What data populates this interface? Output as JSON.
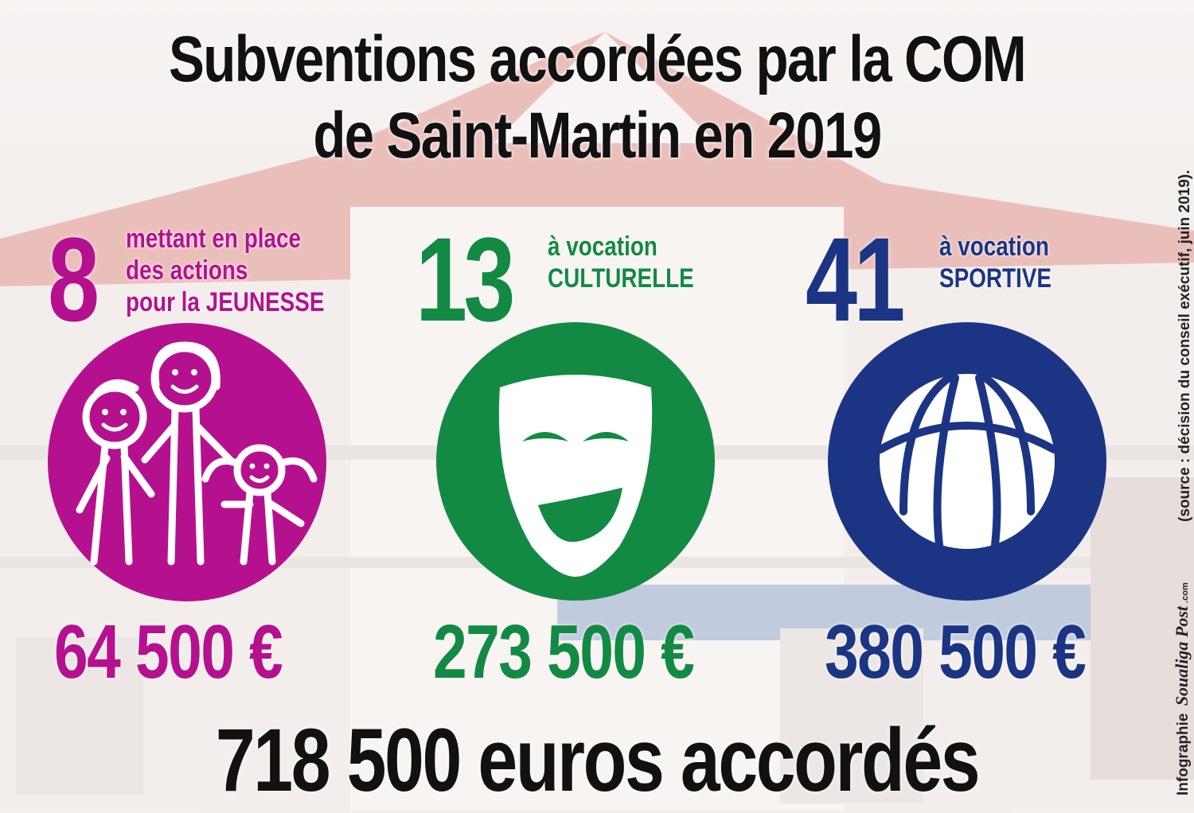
{
  "title": {
    "line1": "Subventions accordées par la COM",
    "line2": "de Saint-Martin en 2019"
  },
  "categories": [
    {
      "count": "8",
      "desc_lines": [
        "mettant en place",
        "des actions",
        "pour la JEUNESSE"
      ],
      "amount": "64 500 €",
      "color": "#b5118f",
      "icon": "family-icon"
    },
    {
      "count": "13",
      "desc_lines": [
        "à vocation",
        "CULTURELLE"
      ],
      "amount": "273 500 €",
      "color": "#138a43",
      "icon": "theater-mask-icon"
    },
    {
      "count": "41",
      "desc_lines": [
        "à vocation",
        "SPORTIVE"
      ],
      "amount": "380 500 €",
      "color": "#1b3584",
      "icon": "basketball-icon"
    }
  ],
  "total": "718 500 euros accordés",
  "credit": {
    "prefix": "Infographie",
    "brand": "Soualiga Post",
    "brand_suffix": ".com"
  },
  "source": "(source : décision du conseil exécutif, juin 2019)."
}
